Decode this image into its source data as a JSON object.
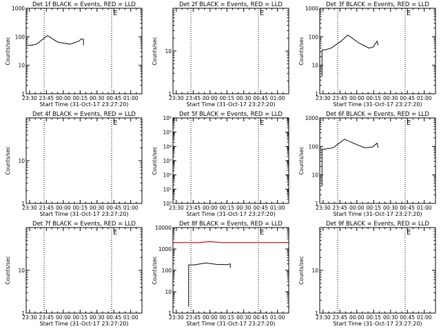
{
  "chart_data": [
    {
      "type": "line",
      "title": "Det 1f BLACK = Events, RED = LLD",
      "xlabel": "Start Time (31-Oct-17 23:27:20)",
      "ylabel": "Counts/sec",
      "x_ticks": [
        "23:30",
        "23:45",
        "00:00",
        "00:15",
        "00:30",
        "00:45",
        "01:00"
      ],
      "xlim_minutes": [
        -3,
        100
      ],
      "y_log": true,
      "ylim": [
        1,
        1000
      ],
      "y_ticks": [
        "1",
        "10",
        "100",
        "1000"
      ],
      "vlines": [
        {
          "time": "23:43",
          "label": ""
        },
        {
          "time": "00:43",
          "label": "E"
        }
      ],
      "series": [
        {
          "color": "#000000",
          "x_minutes": [
            -3,
            -3,
            1,
            6,
            16,
            25,
            36,
            44,
            46,
            48,
            48
          ],
          "values": [
            7,
            50,
            50,
            55,
            110,
            65,
            55,
            70,
            85,
            80,
            50
          ]
        }
      ]
    },
    {
      "type": "line",
      "title": "Det 2f BLACK = Events, RED = LLD",
      "xlabel": "Start Time (31-Oct-17 23:27:20)",
      "ylabel": "Counts/sec",
      "x_ticks": [
        "23:30",
        "23:45",
        "00:00",
        "00:15",
        "00:30",
        "00:45",
        "01:00"
      ],
      "xlim_minutes": [
        -3,
        100
      ],
      "y_log": true,
      "ylim": [
        1,
        100
      ],
      "y_ticks": [
        "1",
        "10"
      ],
      "vlines": [
        {
          "time": "23:43",
          "label": ""
        },
        {
          "time": "00:43",
          "label": "E"
        }
      ],
      "series": []
    },
    {
      "type": "line",
      "title": "Det 3f BLACK = Events, RED = LLD",
      "xlabel": "Start Time (31-Oct-17 23:27:20)",
      "ylabel": "Counts/sec",
      "x_ticks": [
        "23:30",
        "23:45",
        "00:00",
        "00:15",
        "00:30",
        "00:45",
        "01:00"
      ],
      "xlim_minutes": [
        -3,
        100
      ],
      "y_log": true,
      "ylim": [
        1,
        1000
      ],
      "y_ticks": [
        "1",
        "10",
        "100",
        "1000"
      ],
      "vlines": [
        {
          "time": "23:43",
          "label": ""
        },
        {
          "time": "00:43",
          "label": "E"
        }
      ],
      "series": [
        {
          "color": "#000000",
          "x_minutes": [
            -1,
            -1,
            2,
            7,
            16,
            22,
            32,
            41,
            45,
            46,
            48,
            49
          ],
          "values": [
            4,
            35,
            35,
            40,
            70,
            115,
            60,
            40,
            45,
            55,
            70,
            50
          ]
        }
      ]
    },
    {
      "type": "line",
      "title": "Det 4f BLACK = Events, RED = LLD",
      "xlabel": "Start Time (31-Oct-17 23:27:20)",
      "ylabel": "Counts/sec",
      "x_ticks": [
        "23:30",
        "23:45",
        "00:00",
        "00:15",
        "00:30",
        "00:45",
        "01:00"
      ],
      "xlim_minutes": [
        -3,
        100
      ],
      "y_log": true,
      "ylim": [
        1,
        100
      ],
      "y_ticks": [
        "1",
        "10"
      ],
      "vlines": [
        {
          "time": "23:43",
          "label": ""
        },
        {
          "time": "00:43",
          "label": "E"
        }
      ],
      "series": []
    },
    {
      "type": "line",
      "title": "Det 5f BLACK = Events, RED = LLD",
      "xlabel": "Start Time (31-Oct-17 23:27:20)",
      "ylabel": "Counts/sec",
      "x_ticks": [
        "23:30",
        "23:45",
        "00:00",
        "00:15",
        "00:30",
        "00:45",
        "01:00"
      ],
      "xlim_minutes": [
        -3,
        100
      ],
      "y_log": true,
      "ylim": [
        1,
        1000000
      ],
      "y_ticks": [
        "10⁰",
        "10¹",
        "10²",
        "10³",
        "10⁴",
        "10⁵",
        "10⁶"
      ],
      "vlines": [
        {
          "time": "23:43",
          "label": ""
        },
        {
          "time": "00:43",
          "label": "E"
        }
      ],
      "series": []
    },
    {
      "type": "line",
      "title": "Det 6f BLACK = Events, RED = LLD",
      "xlabel": "Start Time (31-Oct-17 23:27:20)",
      "ylabel": "Counts/sec",
      "x_ticks": [
        "23:30",
        "23:45",
        "00:00",
        "00:15",
        "00:30",
        "00:45",
        "01:00"
      ],
      "xlim_minutes": [
        -3,
        100
      ],
      "y_log": true,
      "ylim": [
        1,
        1000
      ],
      "y_ticks": [
        "1",
        "10",
        "100",
        "1000"
      ],
      "vlines": [
        {
          "time": "23:43",
          "label": ""
        },
        {
          "time": "00:43",
          "label": "E"
        }
      ],
      "series": [
        {
          "color": "#000000",
          "x_minutes": [
            -1,
            -1,
            2,
            9,
            19,
            29,
            37,
            44,
            48,
            49
          ],
          "values": [
            4,
            80,
            80,
            90,
            180,
            120,
            90,
            95,
            130,
            90
          ]
        }
      ]
    },
    {
      "type": "line",
      "title": "Det 7f BLACK = Events, RED = LLD",
      "xlabel": "Start Time (31-Oct-17 23:27:20)",
      "ylabel": "Counts/sec",
      "x_ticks": [
        "23:30",
        "23:45",
        "00:00",
        "00:15",
        "00:30",
        "00:45",
        "01:00"
      ],
      "xlim_minutes": [
        -3,
        100
      ],
      "y_log": true,
      "ylim": [
        1,
        100
      ],
      "y_ticks": [
        "1",
        "10"
      ],
      "vlines": [
        {
          "time": "23:43",
          "label": ""
        },
        {
          "time": "00:43",
          "label": "E"
        }
      ],
      "series": []
    },
    {
      "type": "line",
      "title": "Det 8f BLACK = Events, RED = LLD",
      "xlabel": "Start Time (31-Oct-17 23:27:20)",
      "ylabel": "Counts/sec",
      "x_ticks": [
        "23:30",
        "23:45",
        "00:00",
        "00:15",
        "00:30",
        "00:45",
        "01:00"
      ],
      "xlim_minutes": [
        -3,
        100
      ],
      "y_log": true,
      "ylim": [
        1,
        10000
      ],
      "y_ticks": [
        "1",
        "10",
        "100",
        "1000",
        "10000"
      ],
      "vlines": [
        {
          "time": "23:43",
          "label": ""
        },
        {
          "time": "00:43",
          "label": "E"
        }
      ],
      "series": [
        {
          "color": "#000000",
          "x_minutes": [
            11,
            11,
            16,
            26,
            36,
            43,
            46,
            48,
            48
          ],
          "values": [
            2,
            180,
            180,
            220,
            190,
            185,
            190,
            200,
            130
          ]
        },
        {
          "color": "#e00000",
          "x_minutes": [
            -3,
            20,
            30,
            40,
            99
          ],
          "values": [
            2000,
            2000,
            2200,
            2000,
            2000
          ]
        }
      ]
    },
    {
      "type": "line",
      "title": "Det 9f BLACK = Events, RED = LLD",
      "xlabel": "Start Time (31-Oct-17 23:27:20)",
      "ylabel": "Counts/sec",
      "x_ticks": [
        "23:30",
        "23:45",
        "00:00",
        "00:15",
        "00:30",
        "00:45",
        "01:00"
      ],
      "xlim_minutes": [
        -3,
        100
      ],
      "y_log": true,
      "ylim": [
        1,
        100
      ],
      "y_ticks": [
        "1",
        "10"
      ],
      "vlines": [
        {
          "time": "23:43",
          "label": ""
        },
        {
          "time": "00:43",
          "label": "E"
        }
      ],
      "series": []
    }
  ]
}
